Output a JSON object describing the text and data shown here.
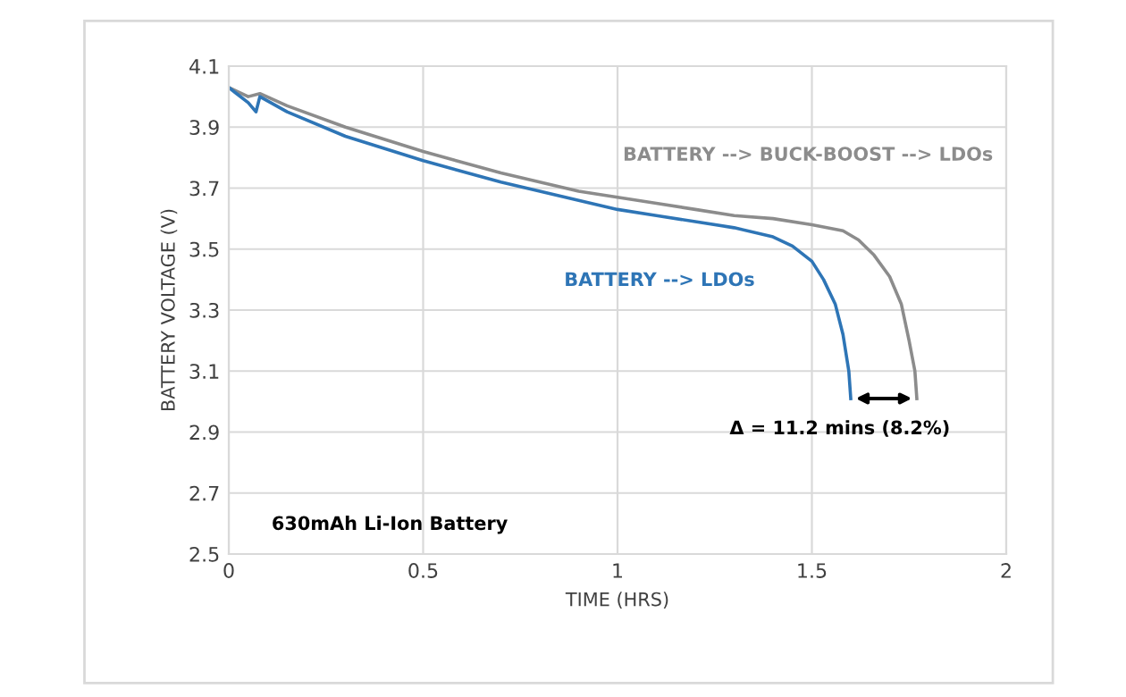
{
  "chart_data": {
    "type": "line",
    "xlabel": "TIME (HRS)",
    "ylabel": "BATTERY VOLTAGE (V)",
    "xlim": [
      0,
      2
    ],
    "xticks": [
      0,
      0.5,
      1,
      1.5,
      2
    ],
    "ylim": [
      2.5,
      4.1
    ],
    "yticks": [
      2.5,
      2.7,
      2.9,
      3.1,
      3.3,
      3.5,
      3.7,
      3.9,
      4.1
    ],
    "grid": true,
    "legend": false,
    "marker": "none",
    "line_style": "solid",
    "series": [
      {
        "name": "BATTERY --> BUCK-BOOST --> LDOs",
        "color": "#8c8c8c",
        "x": [
          0,
          0.05,
          0.08,
          0.15,
          0.3,
          0.5,
          0.7,
          0.9,
          1.0,
          1.1,
          1.2,
          1.3,
          1.4,
          1.5,
          1.58,
          1.62,
          1.66,
          1.7,
          1.73,
          1.75,
          1.765,
          1.77
        ],
        "values": [
          4.03,
          4.0,
          4.01,
          3.97,
          3.9,
          3.82,
          3.75,
          3.69,
          3.67,
          3.65,
          3.63,
          3.61,
          3.6,
          3.58,
          3.56,
          3.53,
          3.48,
          3.41,
          3.32,
          3.2,
          3.1,
          3.01
        ]
      },
      {
        "name": "BATTERY --> LDOs",
        "color": "#2e75b6",
        "x": [
          0,
          0.02,
          0.05,
          0.07,
          0.08,
          0.15,
          0.3,
          0.5,
          0.7,
          0.9,
          1.0,
          1.1,
          1.2,
          1.3,
          1.4,
          1.45,
          1.5,
          1.53,
          1.56,
          1.58,
          1.595,
          1.6
        ],
        "values": [
          4.03,
          4.01,
          3.98,
          3.95,
          4.0,
          3.95,
          3.87,
          3.79,
          3.72,
          3.66,
          3.63,
          3.61,
          3.59,
          3.57,
          3.54,
          3.51,
          3.46,
          3.4,
          3.32,
          3.22,
          3.1,
          3.01
        ]
      }
    ],
    "annotations": [
      "Δ = 11.2 mins (8.2%)",
      "630mAh Li-Ion Battery"
    ]
  }
}
